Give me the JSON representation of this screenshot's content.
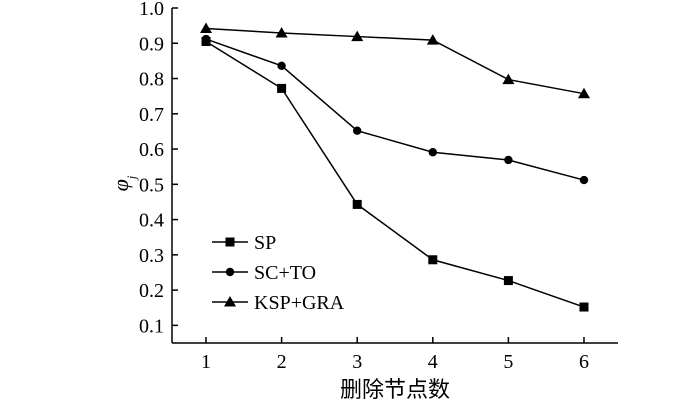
{
  "chart_data": {
    "type": "line",
    "title": "",
    "xlabel": "删除节点数",
    "ylabel": "φ",
    "ylabel_sub": "j",
    "x": [
      1,
      2,
      3,
      4,
      5,
      6
    ],
    "xlim": [
      0.55,
      6.45
    ],
    "ylim": [
      0.05,
      1.0
    ],
    "yticks": [
      "0.1",
      "0.2",
      "0.3",
      "0.4",
      "0.5",
      "0.6",
      "0.7",
      "0.8",
      "0.9",
      "1.0"
    ],
    "ytick_values": [
      0.1,
      0.2,
      0.3,
      0.4,
      0.5,
      0.6,
      0.7,
      0.8,
      0.9,
      1.0
    ],
    "xticks": [
      "1",
      "2",
      "3",
      "4",
      "5",
      "6"
    ],
    "grid": false,
    "legend_position": "bottom-left",
    "series": [
      {
        "name": "SP",
        "marker": "square",
        "values": [
          0.905,
          0.772,
          0.443,
          0.286,
          0.227,
          0.152
        ]
      },
      {
        "name": "SC+TO",
        "marker": "circle",
        "values": [
          0.912,
          0.836,
          0.652,
          0.591,
          0.569,
          0.512
        ]
      },
      {
        "name": "KSP+GRA",
        "marker": "triangle",
        "values": [
          0.942,
          0.929,
          0.919,
          0.909,
          0.797,
          0.757
        ]
      }
    ]
  }
}
